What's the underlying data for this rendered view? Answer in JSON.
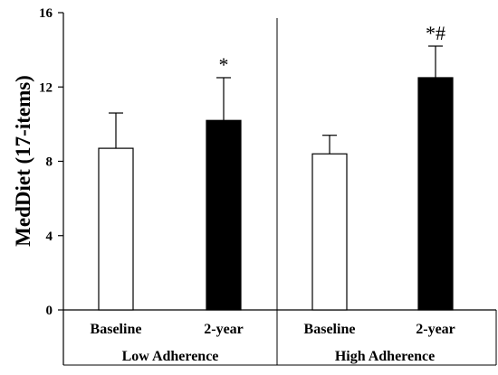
{
  "chart_data": {
    "type": "bar",
    "ylabel": "MedDiet (17-items)",
    "ylim": [
      0,
      16
    ],
    "yticks": [
      0,
      4,
      8,
      12,
      16
    ],
    "grid": false,
    "groups": [
      {
        "name": "Low Adherence",
        "bars": [
          {
            "category": "Baseline",
            "value": 8.7,
            "error": 1.9,
            "fill": "#ffffff",
            "annotation": ""
          },
          {
            "category": "2-year",
            "value": 10.2,
            "error": 2.3,
            "fill": "#000000",
            "annotation": "*"
          }
        ]
      },
      {
        "name": "High Adherence",
        "bars": [
          {
            "category": "Baseline",
            "value": 8.4,
            "error": 1.0,
            "fill": "#ffffff",
            "annotation": ""
          },
          {
            "category": "2-year",
            "value": 12.5,
            "error": 1.7,
            "fill": "#000000",
            "annotation": "*#"
          }
        ]
      }
    ]
  }
}
